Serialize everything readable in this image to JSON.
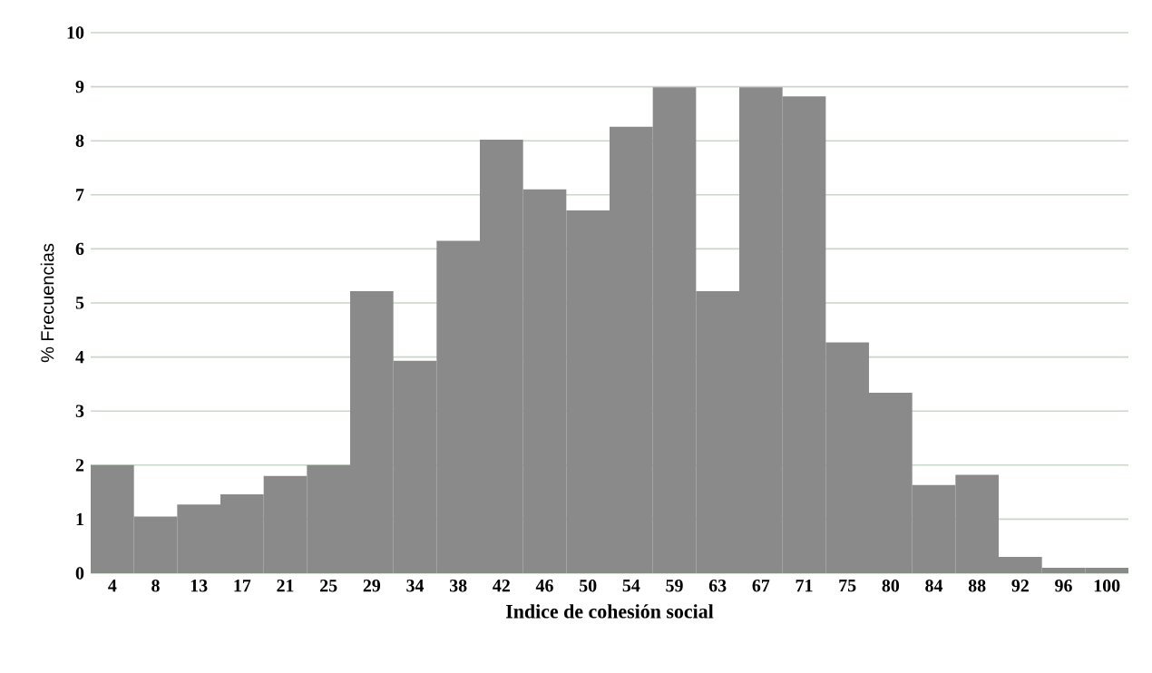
{
  "chart_data": {
    "type": "bar",
    "xlabel": "Indice de cohesión social",
    "ylabel": "% Frecuencias",
    "categories": [
      "4",
      "8",
      "13",
      "17",
      "21",
      "25",
      "29",
      "34",
      "38",
      "42",
      "46",
      "50",
      "54",
      "59",
      "63",
      "67",
      "71",
      "75",
      "80",
      "84",
      "88",
      "92",
      "96",
      "100"
    ],
    "values": [
      2.0,
      1.05,
      1.27,
      1.46,
      1.8,
      2.0,
      5.22,
      3.93,
      6.15,
      8.02,
      7.1,
      6.71,
      8.26,
      8.99,
      5.22,
      8.99,
      8.82,
      4.27,
      3.34,
      1.63,
      1.82,
      0.3,
      0.1,
      0.1
    ],
    "color": "#8a8a8a",
    "ylim": [
      0,
      10
    ],
    "yticks": [
      0,
      1,
      2,
      3,
      4,
      5,
      6,
      7,
      8,
      9,
      10
    ],
    "grid": "y"
  }
}
